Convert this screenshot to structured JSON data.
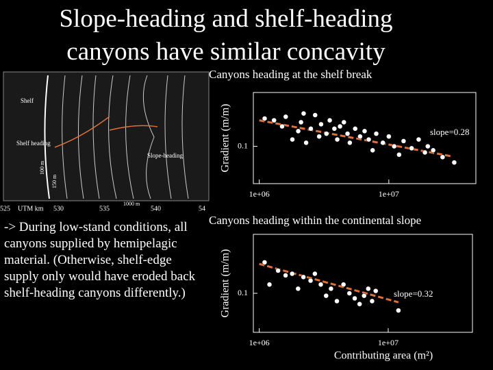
{
  "title": "Slope-heading and shelf-heading canyons have similar concavity",
  "body_text": "-> During low-stand conditions, all canyons supplied by hemipelagic material.  (Otherwise, shelf-edge supply only would have eroded back shelf-heading canyons differently.)",
  "map": {
    "labels": [
      "Shelf",
      "Shelf heading",
      "Slope-heading",
      "100 m",
      "150 m",
      "1000 m"
    ],
    "x_axis_label": "UTM km",
    "x_ticks": [
      "525",
      "530",
      "535",
      "540",
      "54"
    ]
  },
  "chart_data": [
    {
      "type": "scatter",
      "title": "Canyons heading at the shelf break",
      "y_label": "Gradient (m/m)",
      "log_x": true,
      "log_y": true,
      "color": "#ffffff",
      "x": [
        1100000,
        1300000,
        1500000,
        1600000,
        1800000,
        2000000,
        2100000,
        2300000,
        2500000,
        2700000,
        2900000,
        3000000,
        3300000,
        3500000,
        3800000,
        4000000,
        4200000,
        4500000,
        4800000,
        5000000,
        5500000,
        6000000,
        6500000,
        7000000,
        7500000,
        8000000,
        9000000,
        10000000,
        11000000,
        12000000,
        13000000,
        15000000,
        17000000,
        19000000,
        22000000,
        26000000,
        32000000,
        20000000,
        2200000
      ],
      "values": [
        0.21,
        0.2,
        0.17,
        0.22,
        0.12,
        0.15,
        0.19,
        0.11,
        0.16,
        0.23,
        0.13,
        0.18,
        0.14,
        0.2,
        0.16,
        0.12,
        0.17,
        0.19,
        0.14,
        0.11,
        0.16,
        0.13,
        0.15,
        0.12,
        0.09,
        0.14,
        0.11,
        0.13,
        0.1,
        0.08,
        0.115,
        0.095,
        0.12,
        0.085,
        0.09,
        0.075,
        0.065,
        0.1,
        0.24
      ],
      "trend": {
        "color": "#e0703a",
        "x": [
          1000000,
          30000000
        ],
        "values": [
          0.2,
          0.077
        ]
      },
      "annotation": "slope=0.28",
      "xlim": [
        900000,
        47000000
      ],
      "ylim": [
        0.037,
        0.42
      ],
      "xticks": [
        {
          "value": 1000000,
          "label": "1e+06"
        },
        {
          "value": 10000000,
          "label": "1e+07"
        }
      ],
      "yticks": [
        0.1
      ]
    },
    {
      "type": "scatter",
      "title": "Canyons heading within the continental slope",
      "y_label": "Gradient (m/m)",
      "x_label": "Contributing area (m²)",
      "log_x": true,
      "log_y": true,
      "color": "#ffffff",
      "x": [
        1100000,
        1200000,
        1400000,
        1600000,
        1800000,
        2000000,
        2200000,
        2500000,
        2700000,
        3000000,
        3300000,
        3600000,
        4000000,
        4500000,
        5000000,
        5500000,
        6000000,
        6500000,
        7000000,
        7500000,
        8000000,
        12000000
      ],
      "values": [
        0.19,
        0.12,
        0.16,
        0.145,
        0.15,
        0.11,
        0.14,
        0.13,
        0.15,
        0.12,
        0.095,
        0.11,
        0.085,
        0.12,
        0.1,
        0.09,
        0.08,
        0.095,
        0.11,
        0.085,
        0.105,
        0.07
      ],
      "trend": {
        "color": "#e0703a",
        "x": [
          1000000,
          12000000
        ],
        "values": [
          0.184,
          0.083
        ]
      },
      "annotation": "slope=0.32",
      "xlim": [
        900000,
        45000000
      ],
      "ylim": [
        0.0445,
        0.34
      ],
      "xticks": [
        {
          "value": 1000000,
          "label": "1e+06"
        },
        {
          "value": 10000000,
          "label": "1e+07"
        }
      ],
      "yticks": [
        0.1
      ]
    }
  ]
}
